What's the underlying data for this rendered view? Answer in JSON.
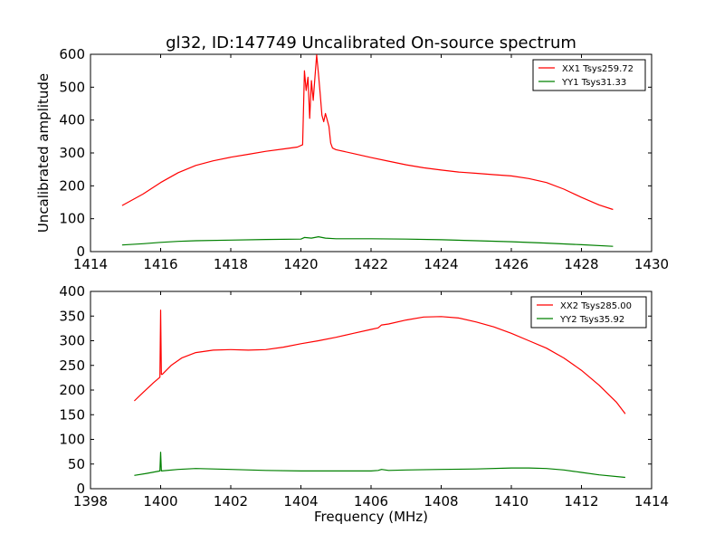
{
  "chart_data": [
    {
      "type": "line",
      "title": "gl32, ID:147749 Uncalibrated On-source spectrum",
      "xlabel": "",
      "ylabel": "Uncalibrated amplitude",
      "xlim": [
        1414,
        1430
      ],
      "ylim": [
        0,
        600
      ],
      "xticks": [
        1414,
        1416,
        1418,
        1420,
        1422,
        1424,
        1426,
        1428,
        1430
      ],
      "yticks": [
        0,
        100,
        200,
        300,
        400,
        500,
        600
      ],
      "legend_position": "top-right",
      "series": [
        {
          "name": "XX1 Tsys259.72",
          "color": "#ff0000",
          "x": [
            1414.9,
            1415.5,
            1416.0,
            1416.5,
            1417.0,
            1417.5,
            1418.0,
            1418.5,
            1419.0,
            1419.5,
            1419.9,
            1420.05,
            1420.1,
            1420.15,
            1420.2,
            1420.25,
            1420.3,
            1420.35,
            1420.4,
            1420.45,
            1420.5,
            1420.55,
            1420.6,
            1420.65,
            1420.7,
            1420.75,
            1420.8,
            1420.85,
            1420.9,
            1421.0,
            1421.5,
            1422.0,
            1422.5,
            1423.0,
            1423.5,
            1424.0,
            1424.5,
            1425.0,
            1425.5,
            1426.0,
            1426.5,
            1427.0,
            1427.5,
            1428.0,
            1428.5,
            1428.9
          ],
          "y": [
            140,
            175,
            210,
            240,
            262,
            276,
            287,
            296,
            305,
            312,
            318,
            325,
            550,
            490,
            530,
            405,
            520,
            460,
            530,
            598,
            540,
            480,
            415,
            395,
            420,
            400,
            380,
            330,
            315,
            310,
            298,
            286,
            275,
            264,
            255,
            248,
            242,
            238,
            234,
            230,
            222,
            210,
            190,
            165,
            142,
            128
          ]
        },
        {
          "name": "YY1 Tsys31.33",
          "color": "#008000",
          "x": [
            1414.9,
            1415.5,
            1416.0,
            1416.5,
            1417.0,
            1418.0,
            1419.0,
            1420.0,
            1420.1,
            1420.3,
            1420.5,
            1420.7,
            1421.0,
            1422.0,
            1423.0,
            1424.0,
            1425.0,
            1426.0,
            1427.0,
            1428.0,
            1428.9
          ],
          "y": [
            20,
            24,
            28,
            31,
            33,
            35,
            37,
            38,
            43,
            41,
            45,
            41,
            39,
            39,
            38,
            36,
            33,
            30,
            26,
            21,
            16
          ]
        }
      ]
    },
    {
      "type": "line",
      "title": "",
      "xlabel": "Frequency (MHz)",
      "ylabel": "",
      "xlim": [
        1398,
        1414
      ],
      "ylim": [
        0,
        400
      ],
      "xticks": [
        1398,
        1400,
        1402,
        1404,
        1406,
        1408,
        1410,
        1412,
        1414
      ],
      "yticks": [
        0,
        50,
        100,
        150,
        200,
        250,
        300,
        350,
        400
      ],
      "legend_position": "top-right",
      "series": [
        {
          "name": "XX2 Tsys285.00",
          "color": "#ff0000",
          "x": [
            1399.25,
            1399.5,
            1399.8,
            1399.98,
            1400.0,
            1400.02,
            1400.05,
            1400.3,
            1400.6,
            1401.0,
            1401.5,
            1402.0,
            1402.5,
            1403.0,
            1403.5,
            1404.0,
            1404.5,
            1405.0,
            1405.5,
            1406.0,
            1406.2,
            1406.3,
            1406.5,
            1407.0,
            1407.5,
            1408.0,
            1408.5,
            1409.0,
            1409.5,
            1410.0,
            1410.5,
            1411.0,
            1411.5,
            1412.0,
            1412.5,
            1413.0,
            1413.25
          ],
          "y": [
            178,
            195,
            215,
            226,
            362,
            232,
            232,
            250,
            265,
            276,
            281,
            282,
            281,
            282,
            287,
            294,
            300,
            307,
            315,
            323,
            326,
            332,
            334,
            342,
            348,
            349,
            346,
            338,
            328,
            315,
            300,
            285,
            265,
            240,
            210,
            175,
            152
          ]
        },
        {
          "name": "YY2 Tsys35.92",
          "color": "#008000",
          "x": [
            1399.25,
            1399.6,
            1399.98,
            1400.0,
            1400.02,
            1400.5,
            1401.0,
            1401.5,
            1402.0,
            1403.0,
            1404.0,
            1405.0,
            1406.0,
            1406.2,
            1406.3,
            1406.5,
            1407.0,
            1408.0,
            1409.0,
            1410.0,
            1410.5,
            1411.0,
            1411.5,
            1412.0,
            1412.5,
            1413.25
          ],
          "y": [
            27,
            31,
            36,
            74,
            36,
            39,
            41,
            40,
            39,
            37,
            36,
            36,
            36,
            37,
            39,
            37,
            38,
            39,
            40,
            42,
            42,
            41,
            38,
            33,
            28,
            23
          ]
        }
      ]
    }
  ]
}
